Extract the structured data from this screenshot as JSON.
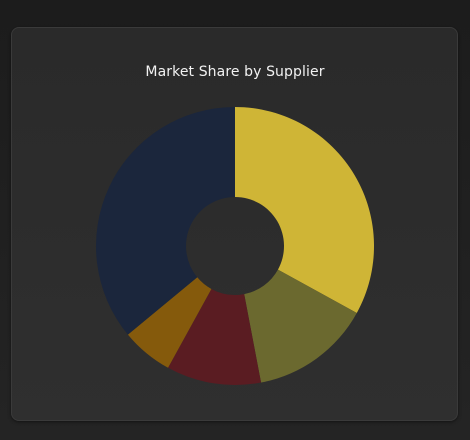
{
  "chart_data": {
    "type": "pie",
    "variant": "donut",
    "title": "Market Share by Supplier",
    "legend": "none",
    "slices": [
      {
        "value": 33,
        "color": "#cfb536"
      },
      {
        "value": 14,
        "color": "#6b692f"
      },
      {
        "value": 11,
        "color": "#5a1c22"
      },
      {
        "value": 6,
        "color": "#855a0c"
      },
      {
        "value": 36,
        "color": "#1b263c"
      }
    ]
  },
  "colors": {
    "card_background": "#2d2d2d",
    "title_text": "#f2f2f2"
  }
}
